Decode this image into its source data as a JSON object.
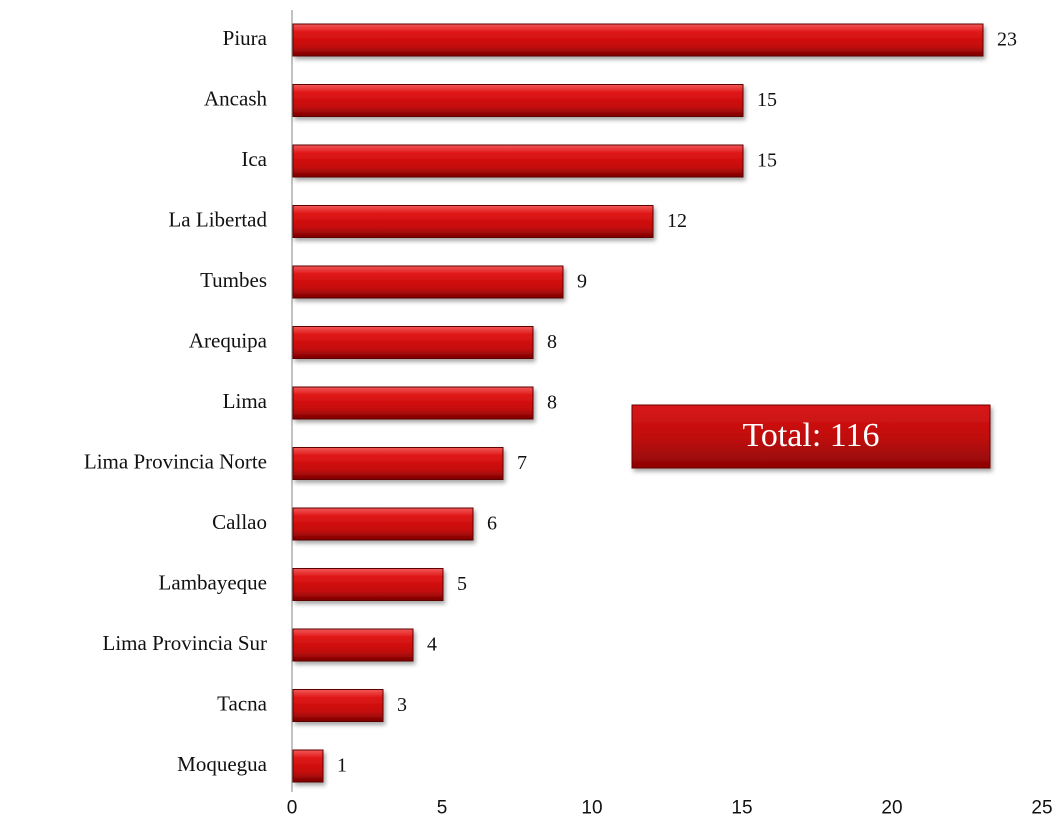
{
  "chart_data": {
    "type": "bar",
    "orientation": "horizontal",
    "categories": [
      "Piura",
      "Ancash",
      "Ica",
      "La Libertad",
      "Tumbes",
      "Arequipa",
      "Lima",
      "Lima Provincia Norte",
      "Callao",
      "Lambayeque",
      "Lima Provincia Sur",
      "Tacna",
      "Moquegua"
    ],
    "values": [
      23,
      15,
      15,
      12,
      9,
      8,
      8,
      7,
      6,
      5,
      4,
      3,
      1
    ],
    "color": "#d10d0d",
    "xlim": [
      0,
      25
    ],
    "xticks": [
      0,
      5,
      10,
      15,
      20,
      25
    ],
    "annotation": "Total: 116"
  }
}
